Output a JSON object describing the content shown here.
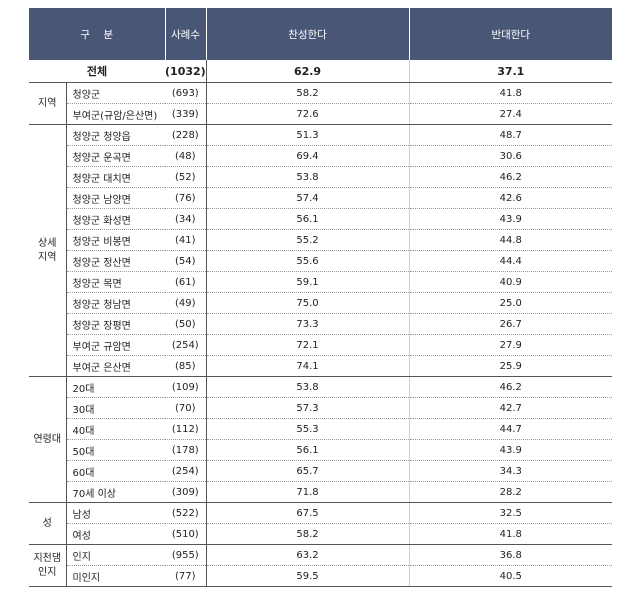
{
  "header": {
    "category": "구    분",
    "n": "사례수",
    "pro": "찬성한다",
    "con": "반대한다"
  },
  "total": {
    "label": "전체",
    "n": "(1032)",
    "pro": "62.9",
    "con": "37.1"
  },
  "groups": [
    {
      "name": "지역",
      "rows": [
        {
          "label": "청양군",
          "n": "(693)",
          "pro": "58.2",
          "con": "41.8"
        },
        {
          "label": "부여군(규암/은산면)",
          "n": "(339)",
          "pro": "72.6",
          "con": "27.4"
        }
      ]
    },
    {
      "name": "상세\n지역",
      "rows": [
        {
          "label": "청양군 청양읍",
          "n": "(228)",
          "pro": "51.3",
          "con": "48.7"
        },
        {
          "label": "청양군 운곡면",
          "n": "(48)",
          "pro": "69.4",
          "con": "30.6"
        },
        {
          "label": "청양군 대치면",
          "n": "(52)",
          "pro": "53.8",
          "con": "46.2"
        },
        {
          "label": "청양군 남양면",
          "n": "(76)",
          "pro": "57.4",
          "con": "42.6"
        },
        {
          "label": "청양군 화성면",
          "n": "(34)",
          "pro": "56.1",
          "con": "43.9"
        },
        {
          "label": "청양군 비봉면",
          "n": "(41)",
          "pro": "55.2",
          "con": "44.8"
        },
        {
          "label": "청양군 정산면",
          "n": "(54)",
          "pro": "55.6",
          "con": "44.4"
        },
        {
          "label": "청양군 목면",
          "n": "(61)",
          "pro": "59.1",
          "con": "40.9"
        },
        {
          "label": "청양군 청남면",
          "n": "(49)",
          "pro": "75.0",
          "con": "25.0"
        },
        {
          "label": "청양군 장평면",
          "n": "(50)",
          "pro": "73.3",
          "con": "26.7"
        },
        {
          "label": "부여군 규암면",
          "n": "(254)",
          "pro": "72.1",
          "con": "27.9"
        },
        {
          "label": "부여군 은산면",
          "n": "(85)",
          "pro": "74.1",
          "con": "25.9"
        }
      ]
    },
    {
      "name": "연령대",
      "rows": [
        {
          "label": "20대",
          "n": "(109)",
          "pro": "53.8",
          "con": "46.2"
        },
        {
          "label": "30대",
          "n": "(70)",
          "pro": "57.3",
          "con": "42.7"
        },
        {
          "label": "40대",
          "n": "(112)",
          "pro": "55.3",
          "con": "44.7"
        },
        {
          "label": "50대",
          "n": "(178)",
          "pro": "56.1",
          "con": "43.9"
        },
        {
          "label": "60대",
          "n": "(254)",
          "pro": "65.7",
          "con": "34.3"
        },
        {
          "label": "70세 이상",
          "n": "(309)",
          "pro": "71.8",
          "con": "28.2"
        }
      ]
    },
    {
      "name": "성",
      "rows": [
        {
          "label": "남성",
          "n": "(522)",
          "pro": "67.5",
          "con": "32.5"
        },
        {
          "label": "여성",
          "n": "(510)",
          "pro": "58.2",
          "con": "41.8"
        }
      ]
    },
    {
      "name": "지천댐\n인지",
      "rows": [
        {
          "label": "인지",
          "n": "(955)",
          "pro": "63.2",
          "con": "36.8"
        },
        {
          "label": "미인지",
          "n": "(77)",
          "pro": "59.5",
          "con": "40.5"
        }
      ]
    }
  ]
}
